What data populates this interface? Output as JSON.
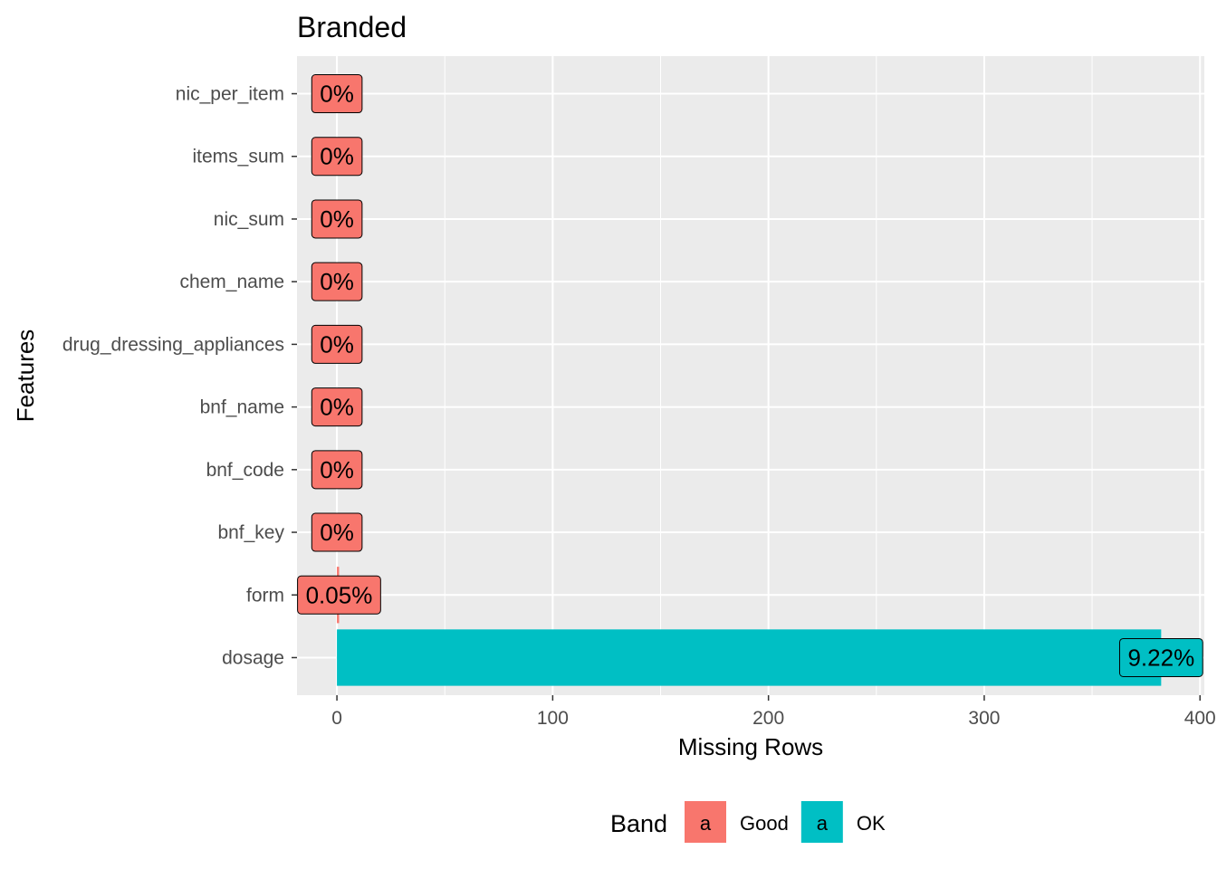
{
  "chart_data": {
    "type": "bar",
    "orientation": "horizontal",
    "title": "Branded",
    "xlabel": "Missing Rows",
    "ylabel": "Features",
    "xlim": [
      -18.5,
      402
    ],
    "x_ticks": [
      0,
      100,
      200,
      300,
      400
    ],
    "grid": true,
    "legend": {
      "title": "Band",
      "placement": "bottom",
      "key_glyph": "a",
      "entries": [
        {
          "label": "Good",
          "color": "#F8766D"
        },
        {
          "label": "OK",
          "color": "#00BFC4"
        }
      ]
    },
    "categories": [
      "nic_per_item",
      "items_sum",
      "nic_sum",
      "chem_name",
      "drug_dressing_appliances",
      "bnf_name",
      "bnf_code",
      "bnf_key",
      "form",
      "dosage"
    ],
    "values": [
      0,
      0,
      0,
      0,
      0,
      0,
      0,
      0,
      1,
      382
    ],
    "labels": [
      "0%",
      "0%",
      "0%",
      "0%",
      "0%",
      "0%",
      "0%",
      "0%",
      "0.05%",
      "9.22%"
    ],
    "bands": [
      "Good",
      "Good",
      "Good",
      "Good",
      "Good",
      "Good",
      "Good",
      "Good",
      "Good",
      "OK"
    ]
  }
}
